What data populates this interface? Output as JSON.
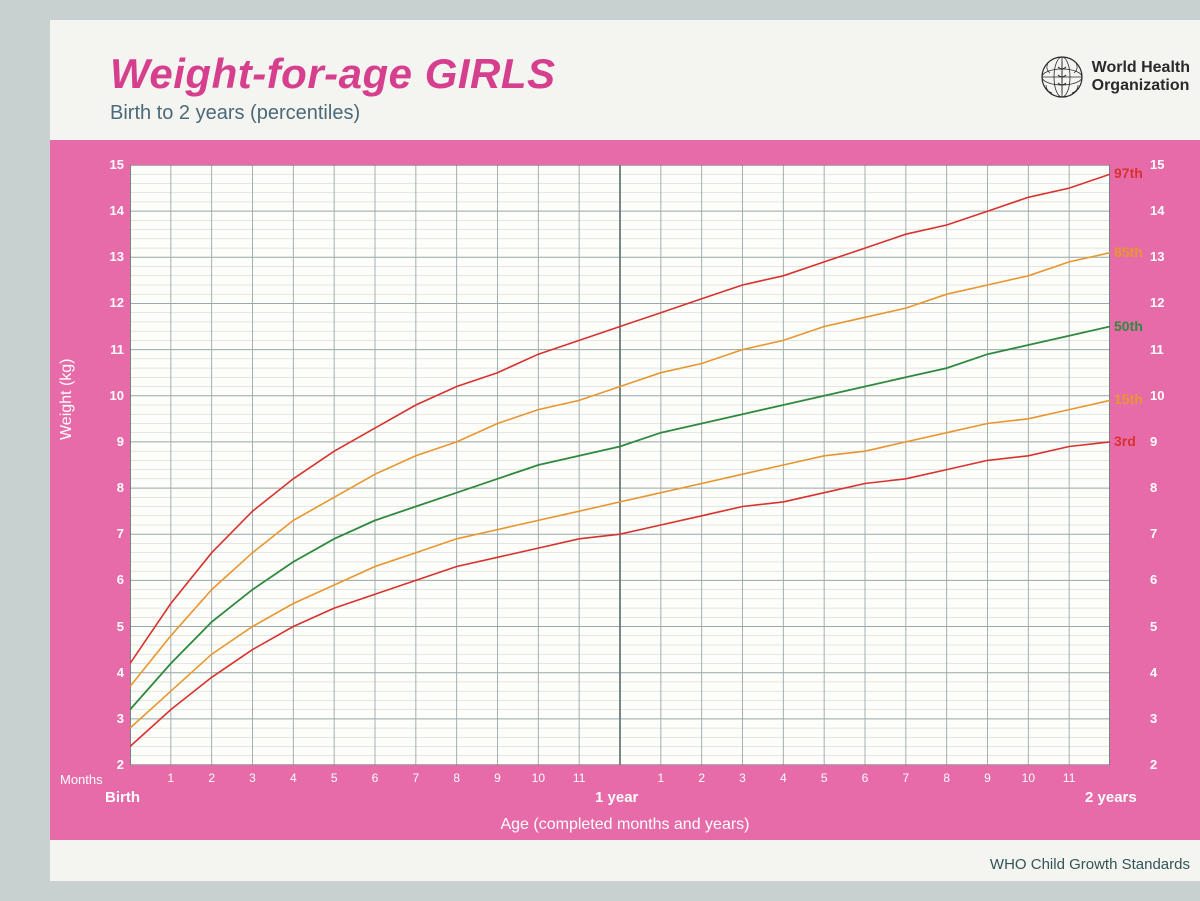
{
  "header": {
    "title": "Weight-for-age GIRLS",
    "subtitle": "Birth to 2 years (percentiles)",
    "org_line1": "World Health",
    "org_line2": "Organization"
  },
  "footer": {
    "text": "WHO Child Growth Standards"
  },
  "chart": {
    "type": "line",
    "background_color": "#fdfdf9",
    "frame_color": "#e76ba8",
    "grid_major_color": "#9aa9a9",
    "grid_minor_color": "#c9d1d1",
    "grid_heavy_color": "#6a7a7a",
    "x": {
      "label": "Age (completed months and years)",
      "months_label": "Months",
      "markers": {
        "birth": "Birth",
        "one_year": "1 year",
        "two_years": "2 years"
      },
      "min": 0,
      "max": 24,
      "month_ticks": [
        1,
        2,
        3,
        4,
        5,
        6,
        7,
        8,
        9,
        10,
        11,
        13,
        14,
        15,
        16,
        17,
        18,
        19,
        20,
        21,
        22,
        23
      ],
      "month_tick_labels": [
        "1",
        "2",
        "3",
        "4",
        "5",
        "6",
        "7",
        "8",
        "9",
        "10",
        "11",
        "1",
        "2",
        "3",
        "4",
        "5",
        "6",
        "7",
        "8",
        "9",
        "10",
        "11"
      ]
    },
    "y": {
      "label": "Weight (kg)",
      "min": 2,
      "max": 15,
      "ticks": [
        2,
        3,
        4,
        5,
        6,
        7,
        8,
        9,
        10,
        11,
        12,
        13,
        14,
        15
      ],
      "minor_per_major": 5
    },
    "series": [
      {
        "name": "3rd",
        "label": "3rd",
        "color": "#d8322f",
        "width": 1.6,
        "points": [
          [
            0,
            2.4
          ],
          [
            1,
            3.2
          ],
          [
            2,
            3.9
          ],
          [
            3,
            4.5
          ],
          [
            4,
            5.0
          ],
          [
            5,
            5.4
          ],
          [
            6,
            5.7
          ],
          [
            7,
            6.0
          ],
          [
            8,
            6.3
          ],
          [
            9,
            6.5
          ],
          [
            10,
            6.7
          ],
          [
            11,
            6.9
          ],
          [
            12,
            7.0
          ],
          [
            13,
            7.2
          ],
          [
            14,
            7.4
          ],
          [
            15,
            7.6
          ],
          [
            16,
            7.7
          ],
          [
            17,
            7.9
          ],
          [
            18,
            8.1
          ],
          [
            19,
            8.2
          ],
          [
            20,
            8.4
          ],
          [
            21,
            8.6
          ],
          [
            22,
            8.7
          ],
          [
            23,
            8.9
          ],
          [
            24,
            9.0
          ]
        ]
      },
      {
        "name": "15th",
        "label": "15th",
        "color": "#e8962f",
        "width": 1.6,
        "points": [
          [
            0,
            2.8
          ],
          [
            1,
            3.6
          ],
          [
            2,
            4.4
          ],
          [
            3,
            5.0
          ],
          [
            4,
            5.5
          ],
          [
            5,
            5.9
          ],
          [
            6,
            6.3
          ],
          [
            7,
            6.6
          ],
          [
            8,
            6.9
          ],
          [
            9,
            7.1
          ],
          [
            10,
            7.3
          ],
          [
            11,
            7.5
          ],
          [
            12,
            7.7
          ],
          [
            13,
            7.9
          ],
          [
            14,
            8.1
          ],
          [
            15,
            8.3
          ],
          [
            16,
            8.5
          ],
          [
            17,
            8.7
          ],
          [
            18,
            8.8
          ],
          [
            19,
            9.0
          ],
          [
            20,
            9.2
          ],
          [
            21,
            9.4
          ],
          [
            22,
            9.5
          ],
          [
            23,
            9.7
          ],
          [
            24,
            9.9
          ]
        ]
      },
      {
        "name": "50th",
        "label": "50th",
        "color": "#2f8a3f",
        "width": 1.8,
        "points": [
          [
            0,
            3.2
          ],
          [
            1,
            4.2
          ],
          [
            2,
            5.1
          ],
          [
            3,
            5.8
          ],
          [
            4,
            6.4
          ],
          [
            5,
            6.9
          ],
          [
            6,
            7.3
          ],
          [
            7,
            7.6
          ],
          [
            8,
            7.9
          ],
          [
            9,
            8.2
          ],
          [
            10,
            8.5
          ],
          [
            11,
            8.7
          ],
          [
            12,
            8.9
          ],
          [
            13,
            9.2
          ],
          [
            14,
            9.4
          ],
          [
            15,
            9.6
          ],
          [
            16,
            9.8
          ],
          [
            17,
            10.0
          ],
          [
            18,
            10.2
          ],
          [
            19,
            10.4
          ],
          [
            20,
            10.6
          ],
          [
            21,
            10.9
          ],
          [
            22,
            11.1
          ],
          [
            23,
            11.3
          ],
          [
            24,
            11.5
          ]
        ]
      },
      {
        "name": "85th",
        "label": "85th",
        "color": "#e8962f",
        "width": 1.6,
        "points": [
          [
            0,
            3.7
          ],
          [
            1,
            4.8
          ],
          [
            2,
            5.8
          ],
          [
            3,
            6.6
          ],
          [
            4,
            7.3
          ],
          [
            5,
            7.8
          ],
          [
            6,
            8.3
          ],
          [
            7,
            8.7
          ],
          [
            8,
            9.0
          ],
          [
            9,
            9.4
          ],
          [
            10,
            9.7
          ],
          [
            11,
            9.9
          ],
          [
            12,
            10.2
          ],
          [
            13,
            10.5
          ],
          [
            14,
            10.7
          ],
          [
            15,
            11.0
          ],
          [
            16,
            11.2
          ],
          [
            17,
            11.5
          ],
          [
            18,
            11.7
          ],
          [
            19,
            11.9
          ],
          [
            20,
            12.2
          ],
          [
            21,
            12.4
          ],
          [
            22,
            12.6
          ],
          [
            23,
            12.9
          ],
          [
            24,
            13.1
          ]
        ]
      },
      {
        "name": "97th",
        "label": "97th",
        "color": "#d8322f",
        "width": 1.6,
        "points": [
          [
            0,
            4.2
          ],
          [
            1,
            5.5
          ],
          [
            2,
            6.6
          ],
          [
            3,
            7.5
          ],
          [
            4,
            8.2
          ],
          [
            5,
            8.8
          ],
          [
            6,
            9.3
          ],
          [
            7,
            9.8
          ],
          [
            8,
            10.2
          ],
          [
            9,
            10.5
          ],
          [
            10,
            10.9
          ],
          [
            11,
            11.2
          ],
          [
            12,
            11.5
          ],
          [
            13,
            11.8
          ],
          [
            14,
            12.1
          ],
          [
            15,
            12.4
          ],
          [
            16,
            12.6
          ],
          [
            17,
            12.9
          ],
          [
            18,
            13.2
          ],
          [
            19,
            13.5
          ],
          [
            20,
            13.7
          ],
          [
            21,
            14.0
          ],
          [
            22,
            14.3
          ],
          [
            23,
            14.5
          ],
          [
            24,
            14.8
          ]
        ]
      }
    ]
  }
}
